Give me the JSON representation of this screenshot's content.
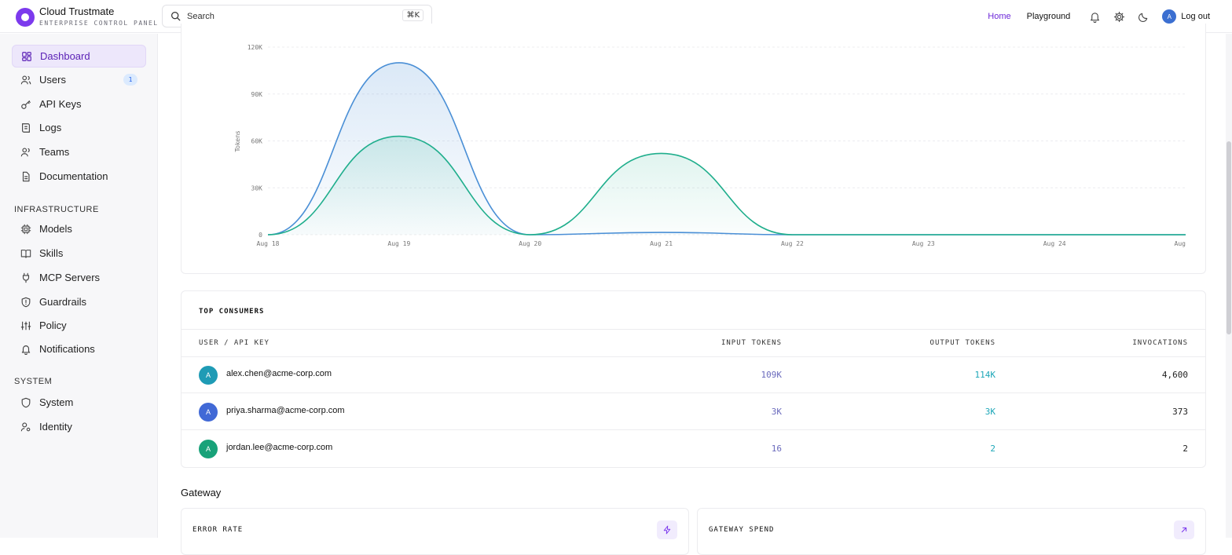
{
  "brand": {
    "name": "Cloud Trustmate",
    "subtitle": "ENTERPRISE CONTROL PANEL"
  },
  "search": {
    "placeholder": "Search",
    "shortcut": "⌘K"
  },
  "topnav": {
    "home": "Home",
    "playground": "Playground",
    "icons": [
      "bell-icon",
      "gear-icon",
      "moon-icon"
    ],
    "avatar_initial": "A",
    "logout": "Log out",
    "accent": "#6d28d9"
  },
  "sidebar": {
    "items": [
      {
        "label": "Dashboard",
        "icon": "dashboard-icon",
        "active": true
      },
      {
        "label": "Users",
        "icon": "users-icon",
        "badge": "1"
      },
      {
        "label": "API Keys",
        "icon": "key-icon"
      },
      {
        "label": "Logs",
        "icon": "logs-icon"
      },
      {
        "label": "Teams",
        "icon": "teams-icon"
      },
      {
        "label": "Documentation",
        "icon": "document-icon"
      }
    ],
    "infra_title": "INFRASTRUCTURE",
    "infra_items": [
      {
        "label": "Models",
        "icon": "chip-icon"
      },
      {
        "label": "Skills",
        "icon": "book-icon"
      },
      {
        "label": "MCP Servers",
        "icon": "plug-icon"
      },
      {
        "label": "Guardrails",
        "icon": "shield-alert-icon"
      },
      {
        "label": "Policy",
        "icon": "sliders-icon"
      },
      {
        "label": "Notifications",
        "icon": "bell-icon"
      }
    ],
    "system_title": "SYSTEM",
    "system_items": [
      {
        "label": "System",
        "icon": "shield-icon"
      },
      {
        "label": "Identity",
        "icon": "identity-icon"
      }
    ]
  },
  "chart_data": {
    "type": "area",
    "ylabel": "Tokens",
    "ylim": [
      0,
      120000
    ],
    "yticks": [
      "0",
      "30K",
      "60K",
      "90K",
      "120K"
    ],
    "x": [
      "Aug 18",
      "Aug 19",
      "Aug 20",
      "Aug 21",
      "Aug 22",
      "Aug 23",
      "Aug 24",
      "Aug"
    ],
    "series": [
      {
        "color": "#4a8fd6",
        "values": [
          0,
          110000,
          0,
          1500,
          0,
          0,
          0,
          0
        ]
      },
      {
        "color": "#1fae8c",
        "values": [
          0,
          63000,
          0,
          52000,
          0,
          0,
          0,
          0
        ]
      }
    ],
    "grid": true
  },
  "consumers": {
    "title": "TOP CONSUMERS",
    "headers": {
      "user": "USER / API KEY",
      "input": "INPUT TOKENS",
      "output": "OUTPUT TOKENS",
      "invocations": "INVOCATIONS"
    },
    "rows": [
      {
        "initial": "A",
        "avatar_color": "#1f9bb5",
        "user": "alex.chen@acme-corp.com",
        "input": "109K",
        "output": "114K",
        "invocations": "4,600"
      },
      {
        "initial": "A",
        "avatar_color": "#4169d6",
        "user": "priya.sharma@acme-corp.com",
        "input": "3K",
        "output": "3K",
        "invocations": "373"
      },
      {
        "initial": "A",
        "avatar_color": "#18a279",
        "user": "jordan.lee@acme-corp.com",
        "input": "16",
        "output": "2",
        "invocations": "2"
      }
    ]
  },
  "gateway": {
    "title": "Gateway",
    "cards": [
      {
        "title": "ERROR RATE",
        "icon": "zap-icon"
      },
      {
        "title": "GATEWAY SPEND",
        "icon": "arrow-up-right-icon"
      }
    ]
  }
}
